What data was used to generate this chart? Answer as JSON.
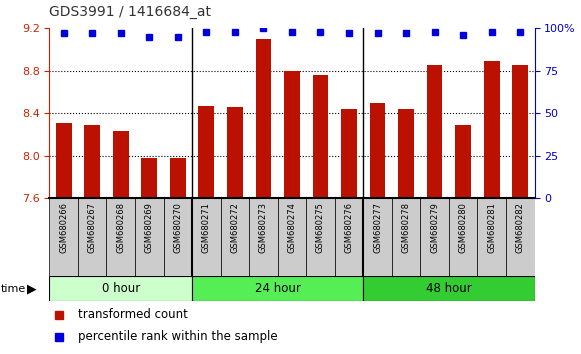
{
  "title": "GDS3991 / 1416684_at",
  "samples": [
    "GSM680266",
    "GSM680267",
    "GSM680268",
    "GSM680269",
    "GSM680270",
    "GSM680271",
    "GSM680272",
    "GSM680273",
    "GSM680274",
    "GSM680275",
    "GSM680276",
    "GSM680277",
    "GSM680278",
    "GSM680279",
    "GSM680280",
    "GSM680281",
    "GSM680282"
  ],
  "bar_values": [
    8.31,
    8.29,
    8.23,
    7.98,
    7.98,
    8.47,
    8.46,
    9.1,
    8.8,
    8.76,
    8.44,
    8.5,
    8.44,
    8.85,
    8.29,
    8.89,
    8.85
  ],
  "dot_values": [
    97,
    97,
    97,
    95,
    95,
    98,
    98,
    100,
    98,
    98,
    97,
    97,
    97,
    98,
    96,
    98,
    98
  ],
  "groups": [
    {
      "label": "0 hour",
      "start": 0,
      "end": 5,
      "color": "#ccffcc"
    },
    {
      "label": "24 hour",
      "start": 5,
      "end": 11,
      "color": "#55ee55"
    },
    {
      "label": "48 hour",
      "start": 11,
      "end": 17,
      "color": "#33cc33"
    }
  ],
  "bar_color": "#bb1100",
  "dot_color": "#0000dd",
  "ylim_left": [
    7.6,
    9.2
  ],
  "ylim_right": [
    0,
    100
  ],
  "yticks_left": [
    7.6,
    8.0,
    8.4,
    8.8,
    9.2
  ],
  "yticks_right": [
    0,
    25,
    50,
    75,
    100
  ],
  "grid_values": [
    8.0,
    8.4,
    8.8
  ],
  "bar_width": 0.55,
  "legend_bar_label": "transformed count",
  "legend_dot_label": "percentile rank within the sample",
  "cell_bg": "#cccccc",
  "plot_bg": "#ffffff",
  "left_axis_color": "#cc2200",
  "right_axis_color": "#0000cc"
}
